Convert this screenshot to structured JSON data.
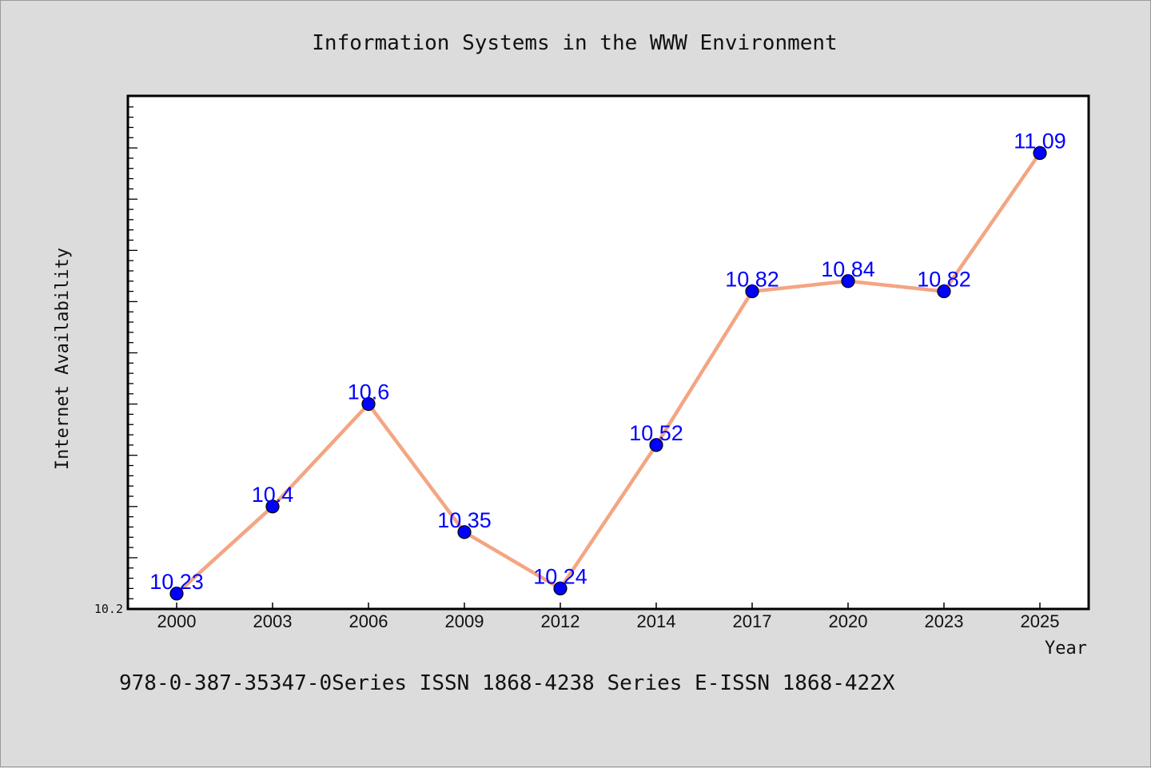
{
  "footer_text": "978-0-387-35347-0Series ISSN 1868-4238 Series E-ISSN 1868-422X",
  "colors": {
    "background": "#dcdcdc",
    "plot_area": "#ffffff",
    "line": "#f4a582",
    "marker": "#0000ff",
    "data_label": "#0000ff"
  },
  "chart_data": {
    "type": "line",
    "title": "Information Systems in the WWW Environment",
    "xlabel": "Year",
    "ylabel": "Internet Availability",
    "categories": [
      "2000",
      "2003",
      "2006",
      "2009",
      "2012",
      "2014",
      "2017",
      "2020",
      "2023",
      "2025"
    ],
    "series": [
      {
        "values": [
          10.23,
          10.4,
          10.6,
          10.35,
          10.24,
          10.52,
          10.82,
          10.84,
          10.82,
          11.09
        ]
      }
    ],
    "ylim": [
      10.2,
      11.2
    ],
    "yticks_labeled": [
      "10.2"
    ],
    "grid": false,
    "legend": "none"
  }
}
